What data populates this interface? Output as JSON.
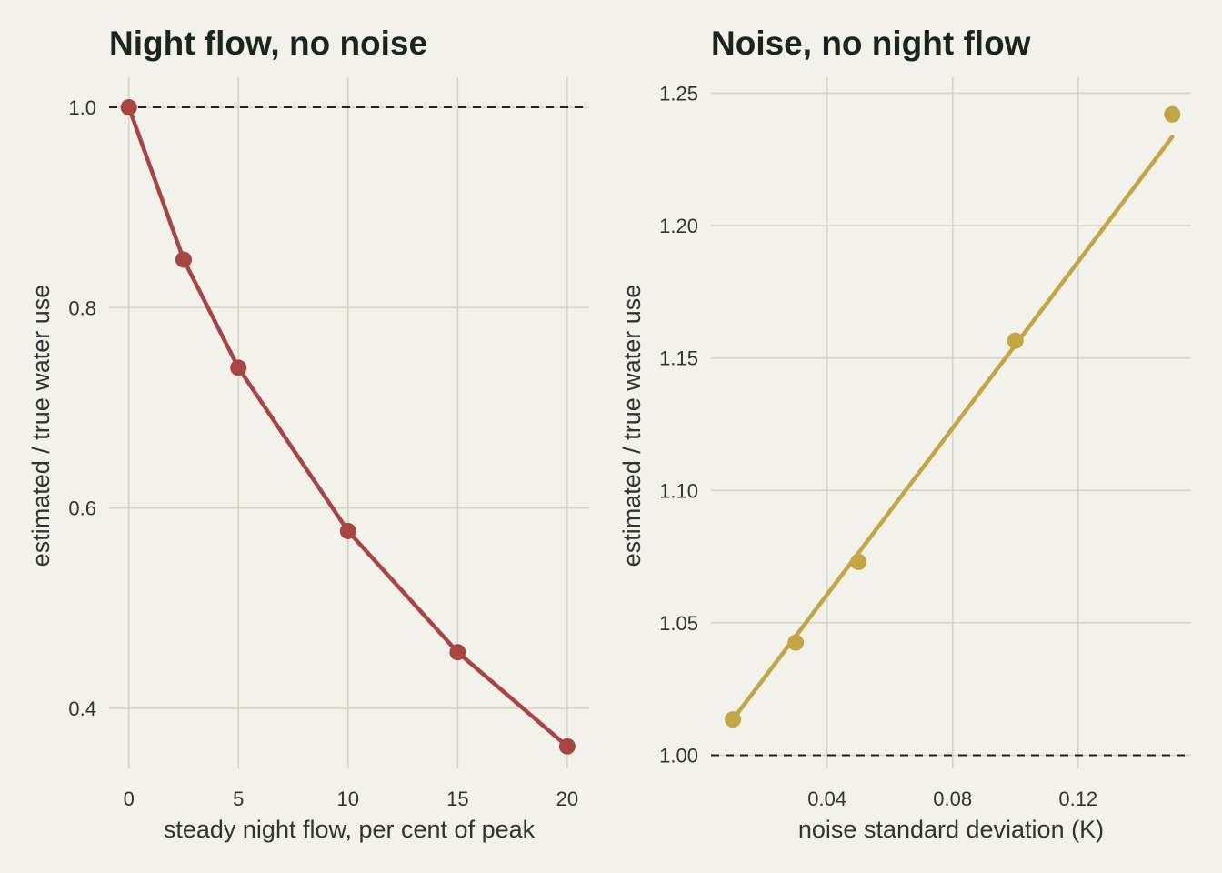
{
  "chart_data": [
    {
      "type": "line",
      "title": "Night flow, no noise",
      "xlabel": "steady night flow, per cent of peak",
      "ylabel": "estimated / true water use",
      "x": [
        0,
        2.5,
        5,
        10,
        15,
        20
      ],
      "series": [
        {
          "values": [
            1.0,
            0.848,
            0.74,
            0.577,
            0.456,
            0.362
          ]
        }
      ],
      "reference_line": {
        "y": 1.0,
        "style": "dashed"
      },
      "xlim": [
        -0.9,
        21
      ],
      "ylim": [
        0.34,
        1.03
      ],
      "xticks": [
        0,
        5,
        10,
        15,
        20
      ],
      "xtick_labels": [
        "0",
        "5",
        "10",
        "15",
        "20"
      ],
      "yticks": [
        0.4,
        0.6,
        0.8,
        1.0
      ],
      "ytick_labels": [
        "0.4",
        "0.6",
        "0.8",
        "1.0"
      ],
      "color": "#a84444",
      "grid": true
    },
    {
      "type": "scatter",
      "title": "Noise, no night flow",
      "xlabel": "noise standard deviation (K)",
      "ylabel": "estimated / true water use",
      "x": [
        0.01,
        0.03,
        0.05,
        0.1,
        0.15
      ],
      "series": [
        {
          "values": [
            1.0135,
            1.0425,
            1.073,
            1.1565,
            1.242
          ]
        }
      ],
      "fit_line": {
        "x": [
          0.01,
          0.15
        ],
        "y": [
          1.0135,
          1.2335
        ]
      },
      "reference_line": {
        "y": 1.0,
        "style": "dashed"
      },
      "xlim": [
        0.003,
        0.156
      ],
      "ylim": [
        0.995,
        1.256
      ],
      "xticks": [
        0.04,
        0.08,
        0.12
      ],
      "xtick_labels": [
        "0.04",
        "0.08",
        "0.12"
      ],
      "yticks": [
        1.0,
        1.05,
        1.1,
        1.15,
        1.2,
        1.25
      ],
      "ytick_labels": [
        "1.00",
        "1.05",
        "1.10",
        "1.15",
        "1.20",
        "1.25"
      ],
      "color": "#c2a544",
      "grid": true
    }
  ]
}
